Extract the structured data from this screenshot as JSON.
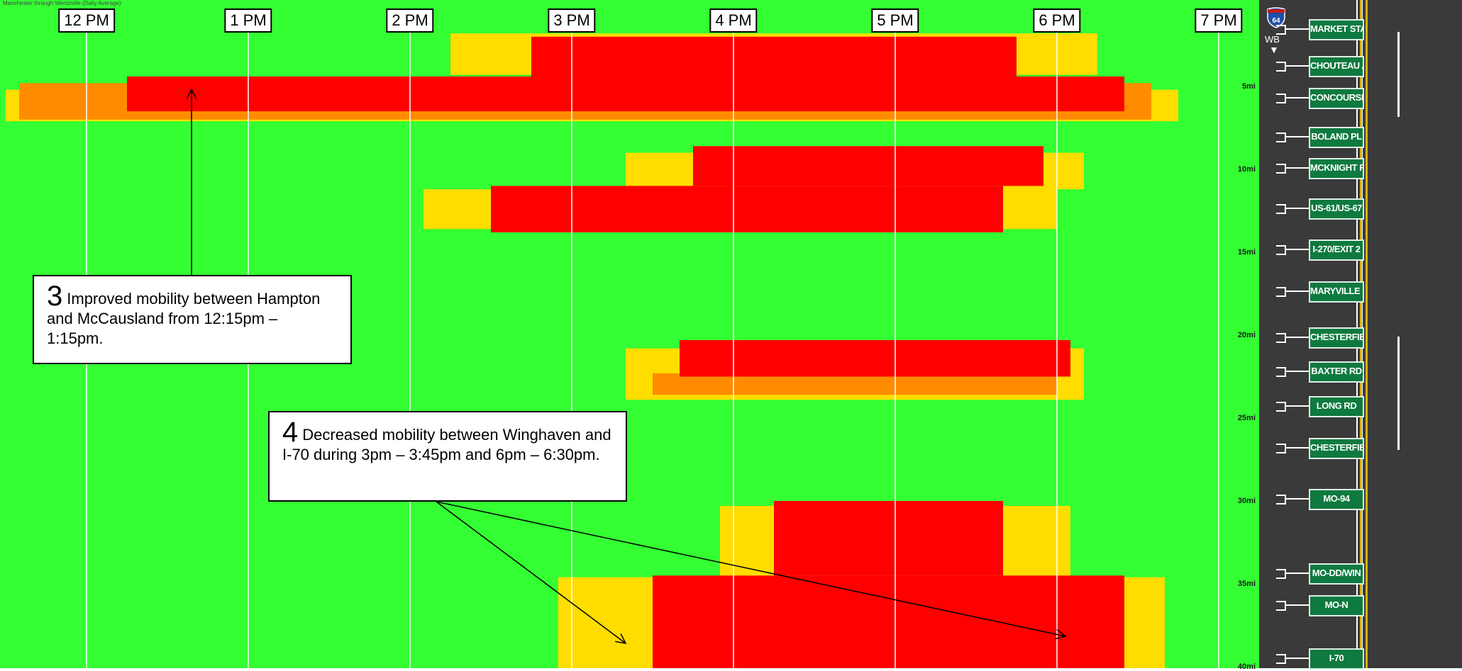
{
  "caption": "Manchester through Wentzville (Daily Average)",
  "chart_data": {
    "type": "heatmap",
    "title": "",
    "x_axis": {
      "ticks": [
        "12 PM",
        "1 PM",
        "2 PM",
        "3 PM",
        "4 PM",
        "5 PM",
        "6 PM",
        "7 PM"
      ],
      "range_hours": [
        11.5,
        19.25
      ]
    },
    "y_axis": {
      "ticks": [
        "5mi",
        "10mi",
        "15mi",
        "20mi",
        "25mi",
        "30mi",
        "35mi",
        "40mi"
      ],
      "range_mi": [
        0,
        40.5
      ]
    },
    "colors": {
      "free_flow": "#33ff33",
      "slowing": "#ffdd00",
      "moderate": "#ff8c00",
      "congested": "#ff0000"
    },
    "regions": [
      {
        "level": "congested",
        "start": "12:15",
        "end": "18:25",
        "mi": [
          4.4,
          6.5
        ]
      },
      {
        "level": "moderate",
        "start": "11:35",
        "end": "18:35",
        "mi": [
          4.8,
          7.0
        ]
      },
      {
        "level": "slowing",
        "start": "11:30",
        "end": "18:45",
        "mi": [
          5.2,
          7.1
        ]
      },
      {
        "level": "congested",
        "start": "14:45",
        "end": "17:45",
        "mi": [
          2.0,
          4.5
        ]
      },
      {
        "level": "slowing",
        "start": "14:15",
        "end": "18:15",
        "mi": [
          1.8,
          4.3
        ]
      },
      {
        "level": "congested",
        "start": "15:45",
        "end": "17:55",
        "mi": [
          8.6,
          11.0
        ]
      },
      {
        "level": "slowing",
        "start": "15:20",
        "end": "18:10",
        "mi": [
          9.0,
          11.2
        ]
      },
      {
        "level": "congested",
        "start": "14:30",
        "end": "17:40",
        "mi": [
          11.0,
          13.8
        ]
      },
      {
        "level": "slowing",
        "start": "14:05",
        "end": "18:00",
        "mi": [
          11.2,
          13.6
        ]
      },
      {
        "level": "congested",
        "start": "15:40",
        "end": "18:05",
        "mi": [
          20.3,
          22.5
        ]
      },
      {
        "level": "moderate",
        "start": "15:30",
        "end": "18:00",
        "mi": [
          22.3,
          23.6
        ]
      },
      {
        "level": "slowing",
        "start": "15:20",
        "end": "18:10",
        "mi": [
          20.8,
          23.9
        ]
      },
      {
        "level": "congested",
        "start": "16:15",
        "end": "17:40",
        "mi": [
          30.0,
          34.5
        ]
      },
      {
        "level": "slowing",
        "start": "15:55",
        "end": "18:05",
        "mi": [
          30.3,
          34.6
        ]
      },
      {
        "level": "congested",
        "start": "15:30",
        "end": "18:25",
        "mi": [
          34.5,
          40.5
        ]
      },
      {
        "level": "slowing",
        "start": "14:55",
        "end": "18:40",
        "mi": [
          34.6,
          40.5
        ]
      }
    ]
  },
  "callouts": [
    {
      "number": "3",
      "text": "Improved mobility between Hampton and McCausland from 12:15pm – 1:15pm."
    },
    {
      "number": "4",
      "text": "Decreased mobility between Winghaven and I-70 during 3pm – 3:45pm and 6pm – 6:30pm."
    }
  ],
  "sidebar": {
    "highway": "64",
    "direction": "WB",
    "exits": [
      "MARKET STA",
      "CHOUTEAU A",
      "CONCOURSE",
      "BOLAND PL",
      "MCKNIGHT R",
      "US-61/US-67",
      "I-270/EXIT 2",
      "MARYVILLE (",
      "CHESTERFIEL",
      "BAXTER RD",
      "LONG RD",
      "CHESTERFIEL",
      "MO-94",
      "MO-DD/WIN",
      "MO-N",
      "I-70"
    ]
  }
}
